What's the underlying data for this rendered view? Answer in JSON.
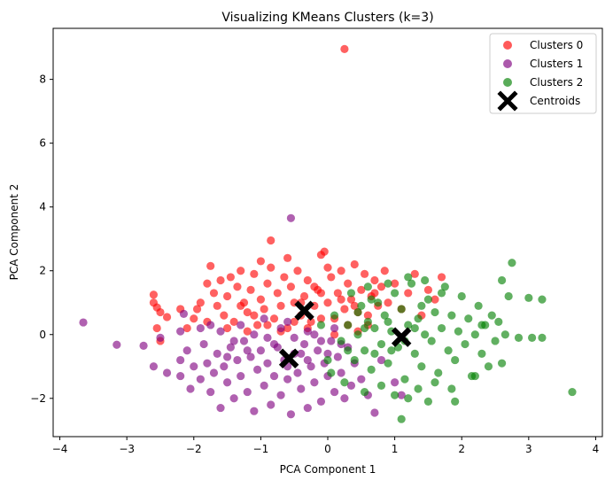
{
  "chart_data": {
    "type": "scatter",
    "title": "Visualizing KMeans Clusters (k=3)",
    "xlabel": "PCA Component 1",
    "ylabel": "PCA Component 2",
    "xlim": [
      -4.1,
      4.1
    ],
    "ylim": [
      -3.2,
      9.6
    ],
    "x_ticks": [
      -4,
      -3,
      -2,
      -1,
      0,
      1,
      2,
      3,
      4
    ],
    "y_ticks": [
      -2,
      0,
      2,
      4,
      6,
      8
    ],
    "x_tick_labels": [
      "−4",
      "−3",
      "−2",
      "−1",
      "0",
      "1",
      "2",
      "3",
      "4"
    ],
    "y_tick_labels": [
      "−2",
      "0",
      "2",
      "4",
      "6",
      "8"
    ],
    "grid": false,
    "legend_position": "top-right",
    "series": [
      {
        "name": "Clusters 0",
        "color": "#ff0000",
        "points": [
          [
            -2.6,
            1.25
          ],
          [
            -2.6,
            1.0
          ],
          [
            -2.55,
            0.85
          ],
          [
            -2.5,
            0.7
          ],
          [
            -2.4,
            0.55
          ],
          [
            -2.55,
            0.2
          ],
          [
            -2.5,
            -0.2
          ],
          [
            -2.0,
            0.5
          ],
          [
            -1.95,
            0.8
          ],
          [
            -1.9,
            1.0
          ],
          [
            -1.8,
            1.6
          ],
          [
            -1.75,
            2.15
          ],
          [
            -1.7,
            1.3
          ],
          [
            -1.65,
            0.9
          ],
          [
            -1.6,
            1.7
          ],
          [
            -1.55,
            0.6
          ],
          [
            -1.5,
            1.2
          ],
          [
            -1.45,
            1.8
          ],
          [
            -1.4,
            0.4
          ],
          [
            -1.35,
            1.5
          ],
          [
            -1.3,
            2.0
          ],
          [
            -1.25,
            1.0
          ],
          [
            -1.2,
            0.7
          ],
          [
            -1.15,
            1.4
          ],
          [
            -1.1,
            1.9
          ],
          [
            -1.05,
            0.3
          ],
          [
            -1.0,
            1.1
          ],
          [
            -0.95,
            0.8
          ],
          [
            -0.9,
            1.6
          ],
          [
            -0.85,
            2.1
          ],
          [
            -0.8,
            0.5
          ],
          [
            -0.75,
            1.3
          ],
          [
            -0.7,
            0.9
          ],
          [
            -0.65,
            1.8
          ],
          [
            -0.6,
            0.2
          ],
          [
            -0.55,
            1.5
          ],
          [
            -0.5,
            1.0
          ],
          [
            -0.45,
            2.0
          ],
          [
            -0.4,
            0.6
          ],
          [
            -0.35,
            1.2
          ],
          [
            -0.3,
            1.7
          ],
          [
            -0.25,
            0.4
          ],
          [
            -0.2,
            0.9
          ],
          [
            -0.15,
            1.4
          ],
          [
            -0.1,
            2.5
          ],
          [
            -0.05,
            2.6
          ],
          [
            0.0,
            1.0
          ],
          [
            0.05,
            1.8
          ],
          [
            0.1,
            0.5
          ],
          [
            0.15,
            1.3
          ],
          [
            0.2,
            2.0
          ],
          [
            0.25,
            0.8
          ],
          [
            0.3,
            1.6
          ],
          [
            0.35,
            1.1
          ],
          [
            0.4,
            2.2
          ],
          [
            0.45,
            0.7
          ],
          [
            0.5,
            1.4
          ],
          [
            0.55,
            1.9
          ],
          [
            0.6,
            0.3
          ],
          [
            0.65,
            1.2
          ],
          [
            0.7,
            1.7
          ],
          [
            0.75,
            0.9
          ],
          [
            0.8,
            1.5
          ],
          [
            0.85,
            2.0
          ],
          [
            0.9,
            1.0
          ],
          [
            1.0,
            1.6
          ],
          [
            1.1,
            0.8
          ],
          [
            1.2,
            1.3
          ],
          [
            1.3,
            1.9
          ],
          [
            1.4,
            0.6
          ],
          [
            1.5,
            1.4
          ],
          [
            1.6,
            1.1
          ],
          [
            1.7,
            1.8
          ],
          [
            -0.85,
            2.95
          ],
          [
            0.25,
            8.95
          ],
          [
            -1.2,
            0.1
          ],
          [
            -0.9,
            0.3
          ],
          [
            -0.7,
            0.1
          ],
          [
            -0.5,
            0.4
          ],
          [
            -0.3,
            0.2
          ],
          [
            -0.1,
            0.5
          ],
          [
            0.1,
            0.0
          ],
          [
            0.3,
            0.3
          ],
          [
            0.45,
            0.1
          ],
          [
            0.6,
            0.6
          ],
          [
            -1.5,
            0.2
          ],
          [
            -1.8,
            0.4
          ],
          [
            -2.1,
            0.2
          ],
          [
            -0.2,
            1.5
          ],
          [
            0.0,
            2.1
          ],
          [
            -0.6,
            2.4
          ],
          [
            -1.0,
            2.3
          ],
          [
            -1.3,
            0.9
          ],
          [
            -1.1,
            0.6
          ],
          [
            -0.4,
            1.0
          ],
          [
            -0.1,
            1.3
          ],
          [
            0.2,
            1.1
          ],
          [
            0.4,
            0.9
          ],
          [
            0.7,
            1.3
          ],
          [
            -2.2,
            0.8
          ]
        ]
      },
      {
        "name": "Clusters 1",
        "color": "#800080",
        "points": [
          [
            -3.65,
            0.38
          ],
          [
            -3.15,
            -0.32
          ],
          [
            -2.75,
            -0.35
          ],
          [
            -2.6,
            -1.0
          ],
          [
            -2.4,
            -1.2
          ],
          [
            -2.2,
            -0.8
          ],
          [
            -2.2,
            -1.3
          ],
          [
            -2.1,
            -0.5
          ],
          [
            -2.05,
            -1.7
          ],
          [
            -2.0,
            -1.0
          ],
          [
            -1.9,
            -1.4
          ],
          [
            -1.85,
            -0.3
          ],
          [
            -1.8,
            -0.9
          ],
          [
            -1.75,
            -1.8
          ],
          [
            -1.7,
            -1.2
          ],
          [
            -1.65,
            -0.6
          ],
          [
            -1.6,
            -2.3
          ],
          [
            -1.55,
            -1.0
          ],
          [
            -1.5,
            -1.5
          ],
          [
            -1.45,
            -0.4
          ],
          [
            -1.4,
            -2.0
          ],
          [
            -1.35,
            -0.8
          ],
          [
            -1.3,
            -1.3
          ],
          [
            -1.25,
            -0.2
          ],
          [
            -1.2,
            -1.8
          ],
          [
            -1.15,
            -0.7
          ],
          [
            -1.1,
            -2.4
          ],
          [
            -1.05,
            -1.1
          ],
          [
            -1.0,
            -0.5
          ],
          [
            -0.95,
            -1.6
          ],
          [
            -0.9,
            -0.9
          ],
          [
            -0.85,
            -2.2
          ],
          [
            -0.8,
            -1.3
          ],
          [
            -0.75,
            -0.4
          ],
          [
            -0.7,
            -1.9
          ],
          [
            -0.65,
            -0.8
          ],
          [
            -0.6,
            -1.4
          ],
          [
            -0.55,
            -2.5
          ],
          [
            -0.5,
            -0.6
          ],
          [
            -0.45,
            -1.2
          ],
          [
            -0.4,
            -1.7
          ],
          [
            -0.35,
            -0.3
          ],
          [
            -0.3,
            -2.3
          ],
          [
            -0.25,
            -1.0
          ],
          [
            -0.2,
            -1.5
          ],
          [
            -0.15,
            -0.5
          ],
          [
            -0.1,
            -2.1
          ],
          [
            -0.05,
            -0.9
          ],
          [
            0.0,
            -1.3
          ],
          [
            0.05,
            -0.2
          ],
          [
            0.1,
            -1.8
          ],
          [
            0.15,
            -0.7
          ],
          [
            0.2,
            -1.2
          ],
          [
            0.25,
            -2.0
          ],
          [
            0.3,
            -0.4
          ],
          [
            0.35,
            -1.6
          ],
          [
            0.4,
            -0.9
          ],
          [
            0.5,
            -1.4
          ],
          [
            0.6,
            -1.9
          ],
          [
            0.7,
            -2.45
          ],
          [
            0.8,
            -0.8
          ],
          [
            1.0,
            -1.5
          ],
          [
            1.1,
            -1.9
          ],
          [
            -0.55,
            3.65
          ],
          [
            -1.3,
            0.3
          ],
          [
            -1.1,
            0.0
          ],
          [
            -0.9,
            -0.1
          ],
          [
            -0.7,
            0.2
          ],
          [
            -0.5,
            -0.1
          ],
          [
            -0.3,
            0.1
          ],
          [
            -0.1,
            -0.2
          ],
          [
            0.1,
            0.2
          ],
          [
            -1.6,
            0.1
          ],
          [
            -1.9,
            0.2
          ],
          [
            -2.2,
            0.1
          ],
          [
            -2.5,
            -0.1
          ],
          [
            -1.4,
            -0.2
          ],
          [
            -1.2,
            -0.5
          ],
          [
            -0.8,
            -0.3
          ],
          [
            -0.6,
            0.4
          ],
          [
            -0.4,
            -0.6
          ],
          [
            -0.2,
            0.0
          ],
          [
            0.0,
            -0.6
          ],
          [
            0.2,
            -0.3
          ],
          [
            -2.15,
            0.65
          ],
          [
            -1.75,
            0.3
          ],
          [
            -0.95,
            0.5
          ],
          [
            -1.5,
            -0.7
          ],
          [
            -0.6,
            -1.0
          ],
          [
            -0.3,
            -0.8
          ]
        ]
      },
      {
        "name": "Clusters 2",
        "color": "#008000",
        "points": [
          [
            0.1,
            0.6
          ],
          [
            0.2,
            -0.2
          ],
          [
            0.3,
            0.3
          ],
          [
            0.35,
            1.3
          ],
          [
            0.4,
            -0.8
          ],
          [
            0.45,
            0.0
          ],
          [
            0.5,
            0.9
          ],
          [
            0.55,
            -0.5
          ],
          [
            0.6,
            0.4
          ],
          [
            0.65,
            -1.1
          ],
          [
            0.7,
            0.2
          ],
          [
            0.75,
            1.0
          ],
          [
            0.8,
            -0.3
          ],
          [
            0.85,
            0.6
          ],
          [
            0.9,
            -0.9
          ],
          [
            0.95,
            0.1
          ],
          [
            1.0,
            1.3
          ],
          [
            1.05,
            -0.4
          ],
          [
            1.1,
            0.8
          ],
          [
            1.15,
            -1.4
          ],
          [
            1.2,
            0.3
          ],
          [
            1.25,
            1.6
          ],
          [
            1.3,
            -0.6
          ],
          [
            1.35,
            0.5
          ],
          [
            1.4,
            -1.0
          ],
          [
            1.45,
            0.0
          ],
          [
            1.5,
            1.1
          ],
          [
            1.55,
            -0.2
          ],
          [
            1.6,
            0.7
          ],
          [
            1.65,
            -1.2
          ],
          [
            1.7,
            0.2
          ],
          [
            1.75,
            1.5
          ],
          [
            1.8,
            -0.5
          ],
          [
            1.85,
            0.6
          ],
          [
            1.9,
            -0.8
          ],
          [
            1.95,
            0.1
          ],
          [
            2.0,
            1.2
          ],
          [
            2.05,
            -0.3
          ],
          [
            2.1,
            0.5
          ],
          [
            2.15,
            -1.3
          ],
          [
            2.2,
            0.0
          ],
          [
            2.25,
            0.9
          ],
          [
            2.3,
            -0.6
          ],
          [
            2.35,
            0.3
          ],
          [
            2.4,
            -1.0
          ],
          [
            2.45,
            0.6
          ],
          [
            2.5,
            -0.2
          ],
          [
            2.55,
            0.4
          ],
          [
            2.6,
            -0.9
          ],
          [
            2.65,
            0.0
          ],
          [
            2.7,
            1.2
          ],
          [
            2.75,
            2.25
          ],
          [
            2.85,
            -0.1
          ],
          [
            3.0,
            1.15
          ],
          [
            3.05,
            -0.1
          ],
          [
            3.2,
            1.1
          ],
          [
            3.2,
            -0.1
          ],
          [
            3.65,
            -1.8
          ],
          [
            1.2,
            -2.0
          ],
          [
            1.5,
            -2.1
          ],
          [
            1.9,
            -2.1
          ],
          [
            2.2,
            -1.3
          ],
          [
            0.0,
            -0.8
          ],
          [
            -0.1,
            0.3
          ],
          [
            0.05,
            -1.2
          ],
          [
            0.25,
            -1.5
          ],
          [
            0.55,
            -1.8
          ],
          [
            0.8,
            -1.6
          ],
          [
            1.0,
            -1.9
          ],
          [
            1.1,
            -2.65
          ],
          [
            1.35,
            -1.7
          ],
          [
            1.6,
            -1.5
          ],
          [
            1.85,
            -1.7
          ],
          [
            0.6,
            1.5
          ],
          [
            0.9,
            1.6
          ],
          [
            1.2,
            1.8
          ],
          [
            1.45,
            1.7
          ],
          [
            1.7,
            1.3
          ],
          [
            0.3,
            -0.5
          ],
          [
            0.55,
            0.2
          ],
          [
            0.7,
            -0.6
          ],
          [
            0.9,
            0.4
          ],
          [
            1.15,
            -0.2
          ],
          [
            1.3,
            0.2
          ],
          [
            0.45,
            0.7
          ],
          [
            0.65,
            1.1
          ],
          [
            0.95,
            -0.5
          ],
          [
            1.4,
            0.9
          ],
          [
            2.6,
            1.7
          ],
          [
            2.3,
            0.3
          ]
        ]
      }
    ],
    "centroids": {
      "name": "Centroids",
      "color": "#000000",
      "points": [
        [
          -0.35,
          0.75
        ],
        [
          -0.58,
          -0.75
        ],
        [
          1.1,
          -0.08
        ]
      ]
    }
  }
}
